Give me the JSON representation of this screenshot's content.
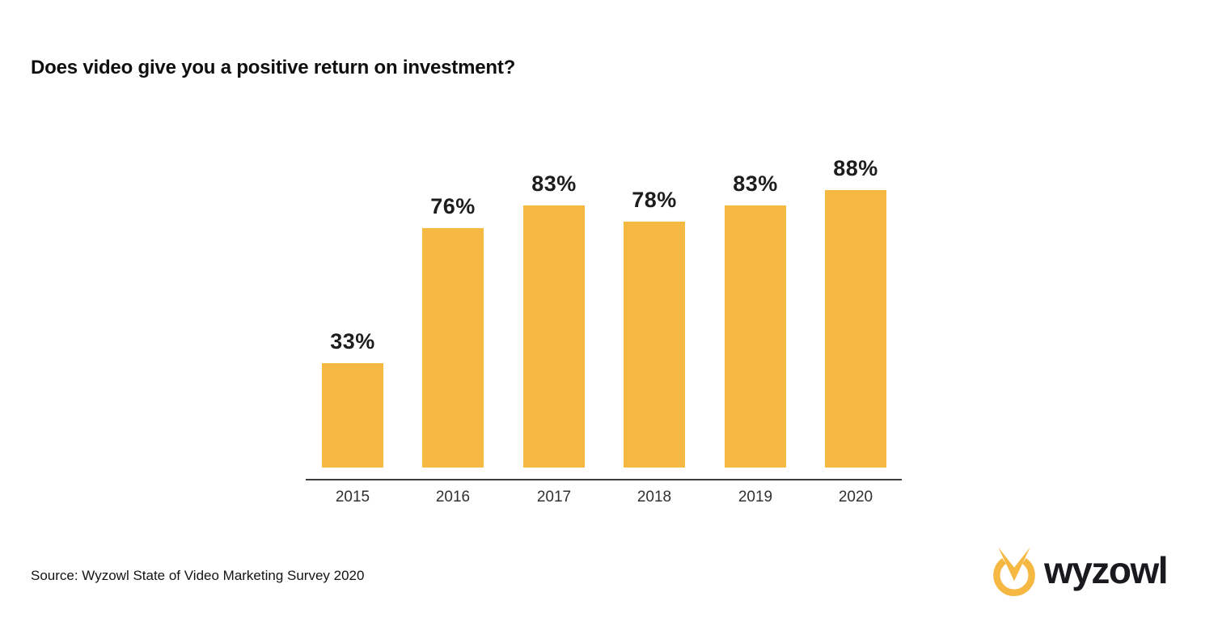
{
  "title": "Does video give you a positive return on investment?",
  "source": "Source: Wyzowl State of Video Marketing Survey 2020",
  "logo": {
    "text": "wyzowl",
    "icon": "wyzowl-owl-icon",
    "icon_color": "#F5B843",
    "text_color": "#1a1a1e"
  },
  "colors": {
    "bar": "#F5B843",
    "value_label": "#1d1d1d",
    "axis_line": "#3e3e3e",
    "tick_label": "#303030",
    "background": "#ffffff"
  },
  "chart_data": {
    "type": "bar",
    "title": "Does video give you a positive return on investment?",
    "categories": [
      "2015",
      "2016",
      "2017",
      "2018",
      "2019",
      "2020"
    ],
    "values": [
      33,
      76,
      83,
      78,
      83,
      88
    ],
    "value_labels": [
      "33%",
      "76%",
      "83%",
      "78%",
      "83%",
      "88%"
    ],
    "unit": "%",
    "xlabel": "",
    "ylabel": "",
    "ylim": [
      0,
      100
    ],
    "grid": false,
    "legend": false,
    "bar_color": "#F5B843",
    "value_labels_position": "above-bars",
    "baseline_axis": "x"
  }
}
